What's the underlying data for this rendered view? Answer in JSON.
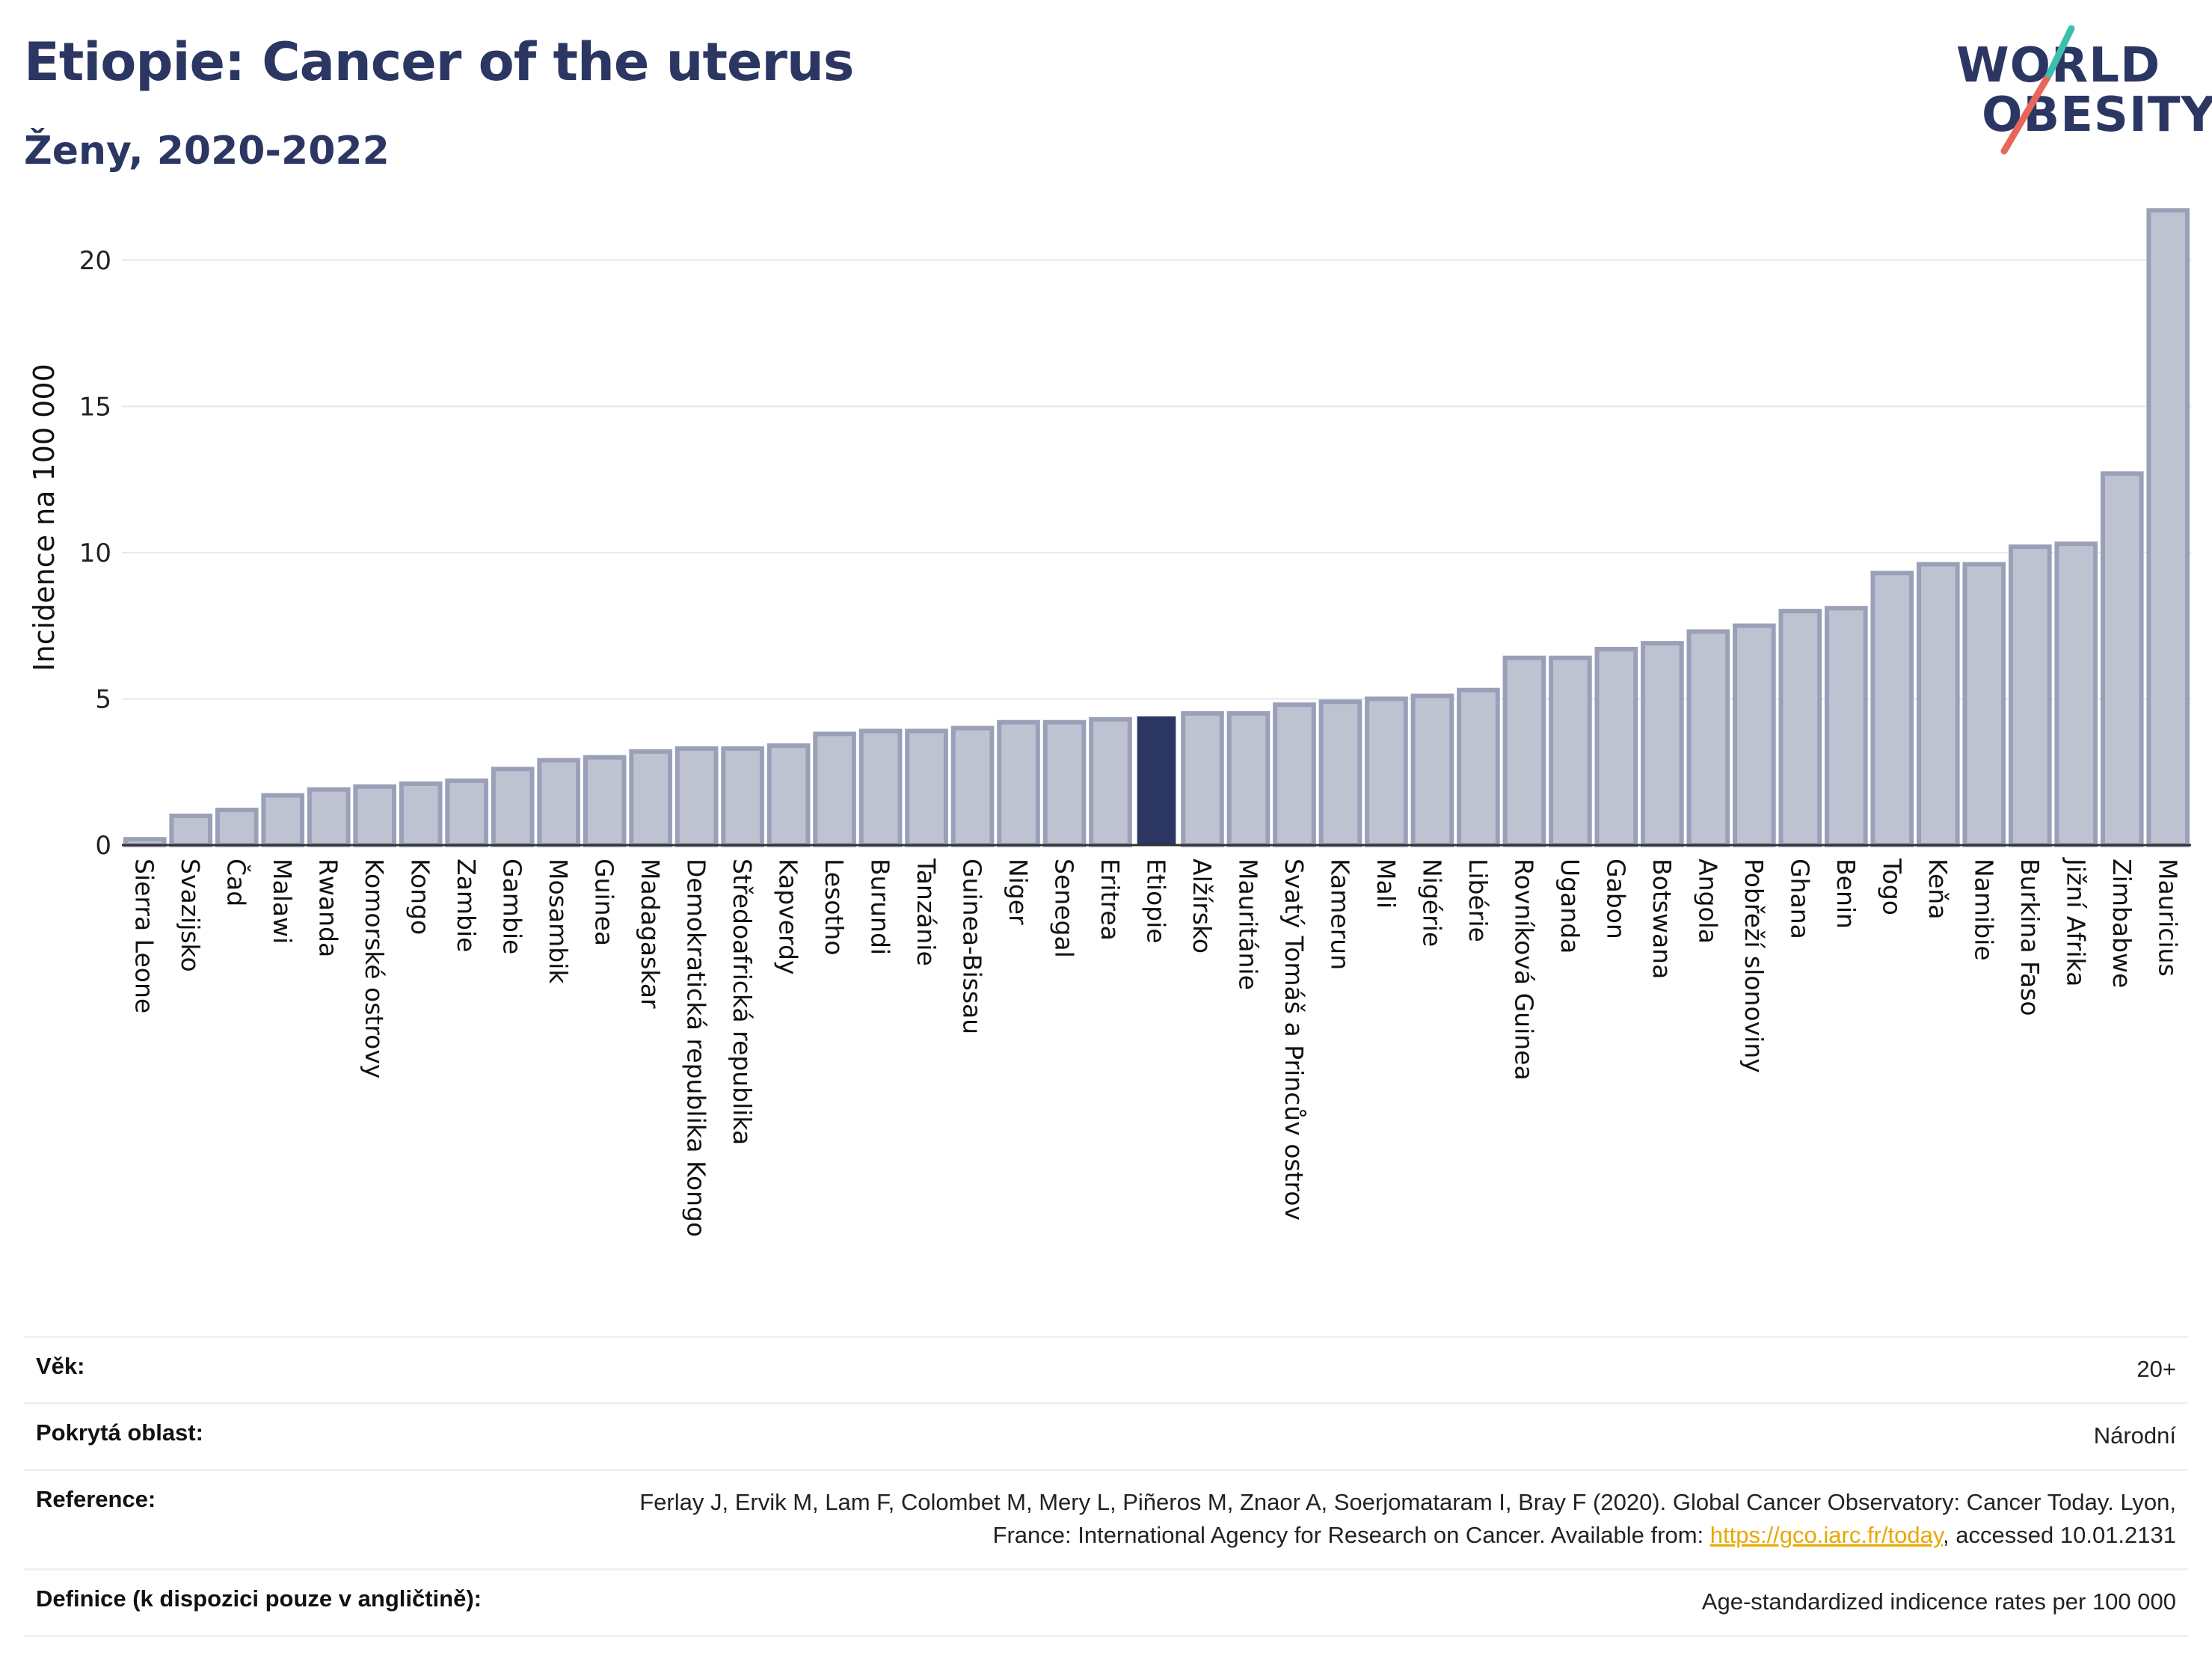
{
  "header": {
    "title": "Etiopie: Cancer of the uterus",
    "subtitle": "Ženy, 2020-2022"
  },
  "logo": {
    "line1": "WORLD",
    "line2": "OBESITY"
  },
  "colors": {
    "bar": "#bfc3d1",
    "bar_border": "#9aa0b8",
    "highlight": "#2b3663",
    "grid": "#e6e8ee",
    "title": "#2b3663",
    "link": "#e8a800"
  },
  "chart_data": {
    "type": "bar",
    "ylabel": "Incidence na 100 000",
    "ylim": [
      0,
      22.5
    ],
    "yticks": [
      0,
      5,
      10,
      15,
      20
    ],
    "grid": true,
    "highlight": "Etiopie",
    "categories": [
      "Sierra Leone",
      "Svazijsko",
      "Čad",
      "Malawi",
      "Rwanda",
      "Komorské ostrovy",
      "Kongo",
      "Zambie",
      "Gambie",
      "Mosambik",
      "Guinea",
      "Madagaskar",
      "Demokratická republika Kongo",
      "Středoafrická republika",
      "Kapverdy",
      "Lesotho",
      "Burundi",
      "Tanzánie",
      "Guinea-Bissau",
      "Niger",
      "Senegal",
      "Eritrea",
      "Etiopie",
      "Alžírsko",
      "Mauritánie",
      "Svatý Tomáš a Princův ostrov",
      "Kamerun",
      "Mali",
      "Nigérie",
      "Libérie",
      "Rovníková Guinea",
      "Uganda",
      "Gabon",
      "Botswana",
      "Angola",
      "Pobřeží slonoviny",
      "Ghana",
      "Benin",
      "Togo",
      "Keňa",
      "Namibie",
      "Burkina Faso",
      "Jižní Afrika",
      "Zimbabwe",
      "Mauricius"
    ],
    "values": [
      0.2,
      1.0,
      1.2,
      1.7,
      1.9,
      2.0,
      2.1,
      2.2,
      2.6,
      2.9,
      3.0,
      3.2,
      3.3,
      3.3,
      3.4,
      3.8,
      3.9,
      3.9,
      4.0,
      4.2,
      4.2,
      4.3,
      4.4,
      4.5,
      4.5,
      4.8,
      4.9,
      5.0,
      5.1,
      5.3,
      6.4,
      6.4,
      6.7,
      6.9,
      7.3,
      7.5,
      8.0,
      8.1,
      9.3,
      9.6,
      9.6,
      10.2,
      10.3,
      12.7,
      21.7
    ]
  },
  "info": {
    "age_label": "Věk:",
    "age_value": "20+",
    "coverage_label": "Pokrytá oblast:",
    "coverage_value": "Národní",
    "reference_label": "Reference:",
    "reference_text_1": "Ferlay J, Ervik M, Lam F, Colombet M, Mery L, Piñeros M, Znaor A, Soerjomataram I, Bray F (2020). Global Cancer Observatory: Cancer Today. Lyon, France: International Agency for Research on Cancer. Available from: ",
    "reference_link": "https://gco.iarc.fr/today",
    "reference_text_2": ", accessed 10.01.2131",
    "definition_label": "Definice (k dispozici pouze v angličtině):",
    "definition_value": "Age-standardized indicence rates per 100 000"
  }
}
